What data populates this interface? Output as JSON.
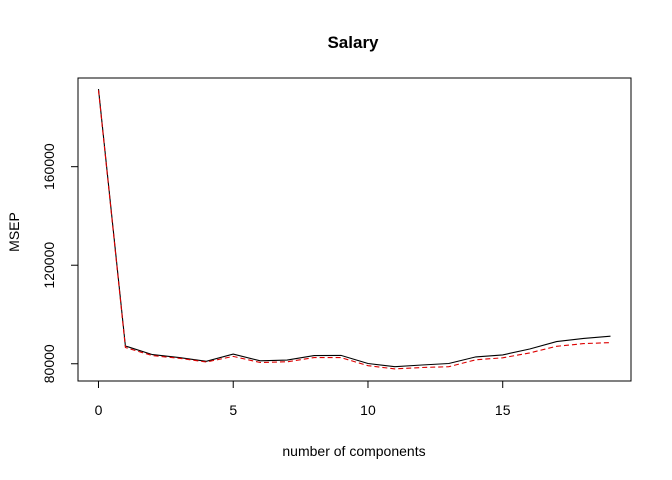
{
  "chart_data": {
    "type": "line",
    "title": "Salary",
    "xlabel": "number of components",
    "ylabel": "MSEP",
    "xlim": [
      -0.76,
      19.76
    ],
    "ylim": [
      73000,
      196000
    ],
    "x_ticks": [
      0,
      5,
      10,
      15
    ],
    "y_ticks": [
      80000,
      120000,
      160000
    ],
    "x_tick_labels": [
      "0",
      "5",
      "10",
      "15"
    ],
    "y_tick_labels": [
      "80000",
      "120000",
      "160000"
    ],
    "grid": false,
    "legend": "none",
    "x": [
      0,
      1,
      2,
      3,
      4,
      5,
      6,
      7,
      8,
      9,
      10,
      11,
      12,
      13,
      14,
      15,
      16,
      17,
      18,
      19
    ],
    "series": [
      {
        "values": [
          191500,
          87200,
          83700,
          82500,
          81000,
          83900,
          81200,
          81500,
          83300,
          83400,
          80100,
          78800,
          79500,
          80100,
          82800,
          83600,
          86000,
          89000,
          90300,
          91200
        ],
        "color": "#000000",
        "dash": "solid"
      },
      {
        "values": [
          191000,
          86600,
          83300,
          82200,
          80700,
          83000,
          80500,
          80800,
          82500,
          82500,
          79200,
          77900,
          78500,
          78800,
          81600,
          82400,
          84400,
          87100,
          88200,
          88600
        ],
        "color": "#dd0000",
        "dash": "dashed"
      }
    ]
  }
}
